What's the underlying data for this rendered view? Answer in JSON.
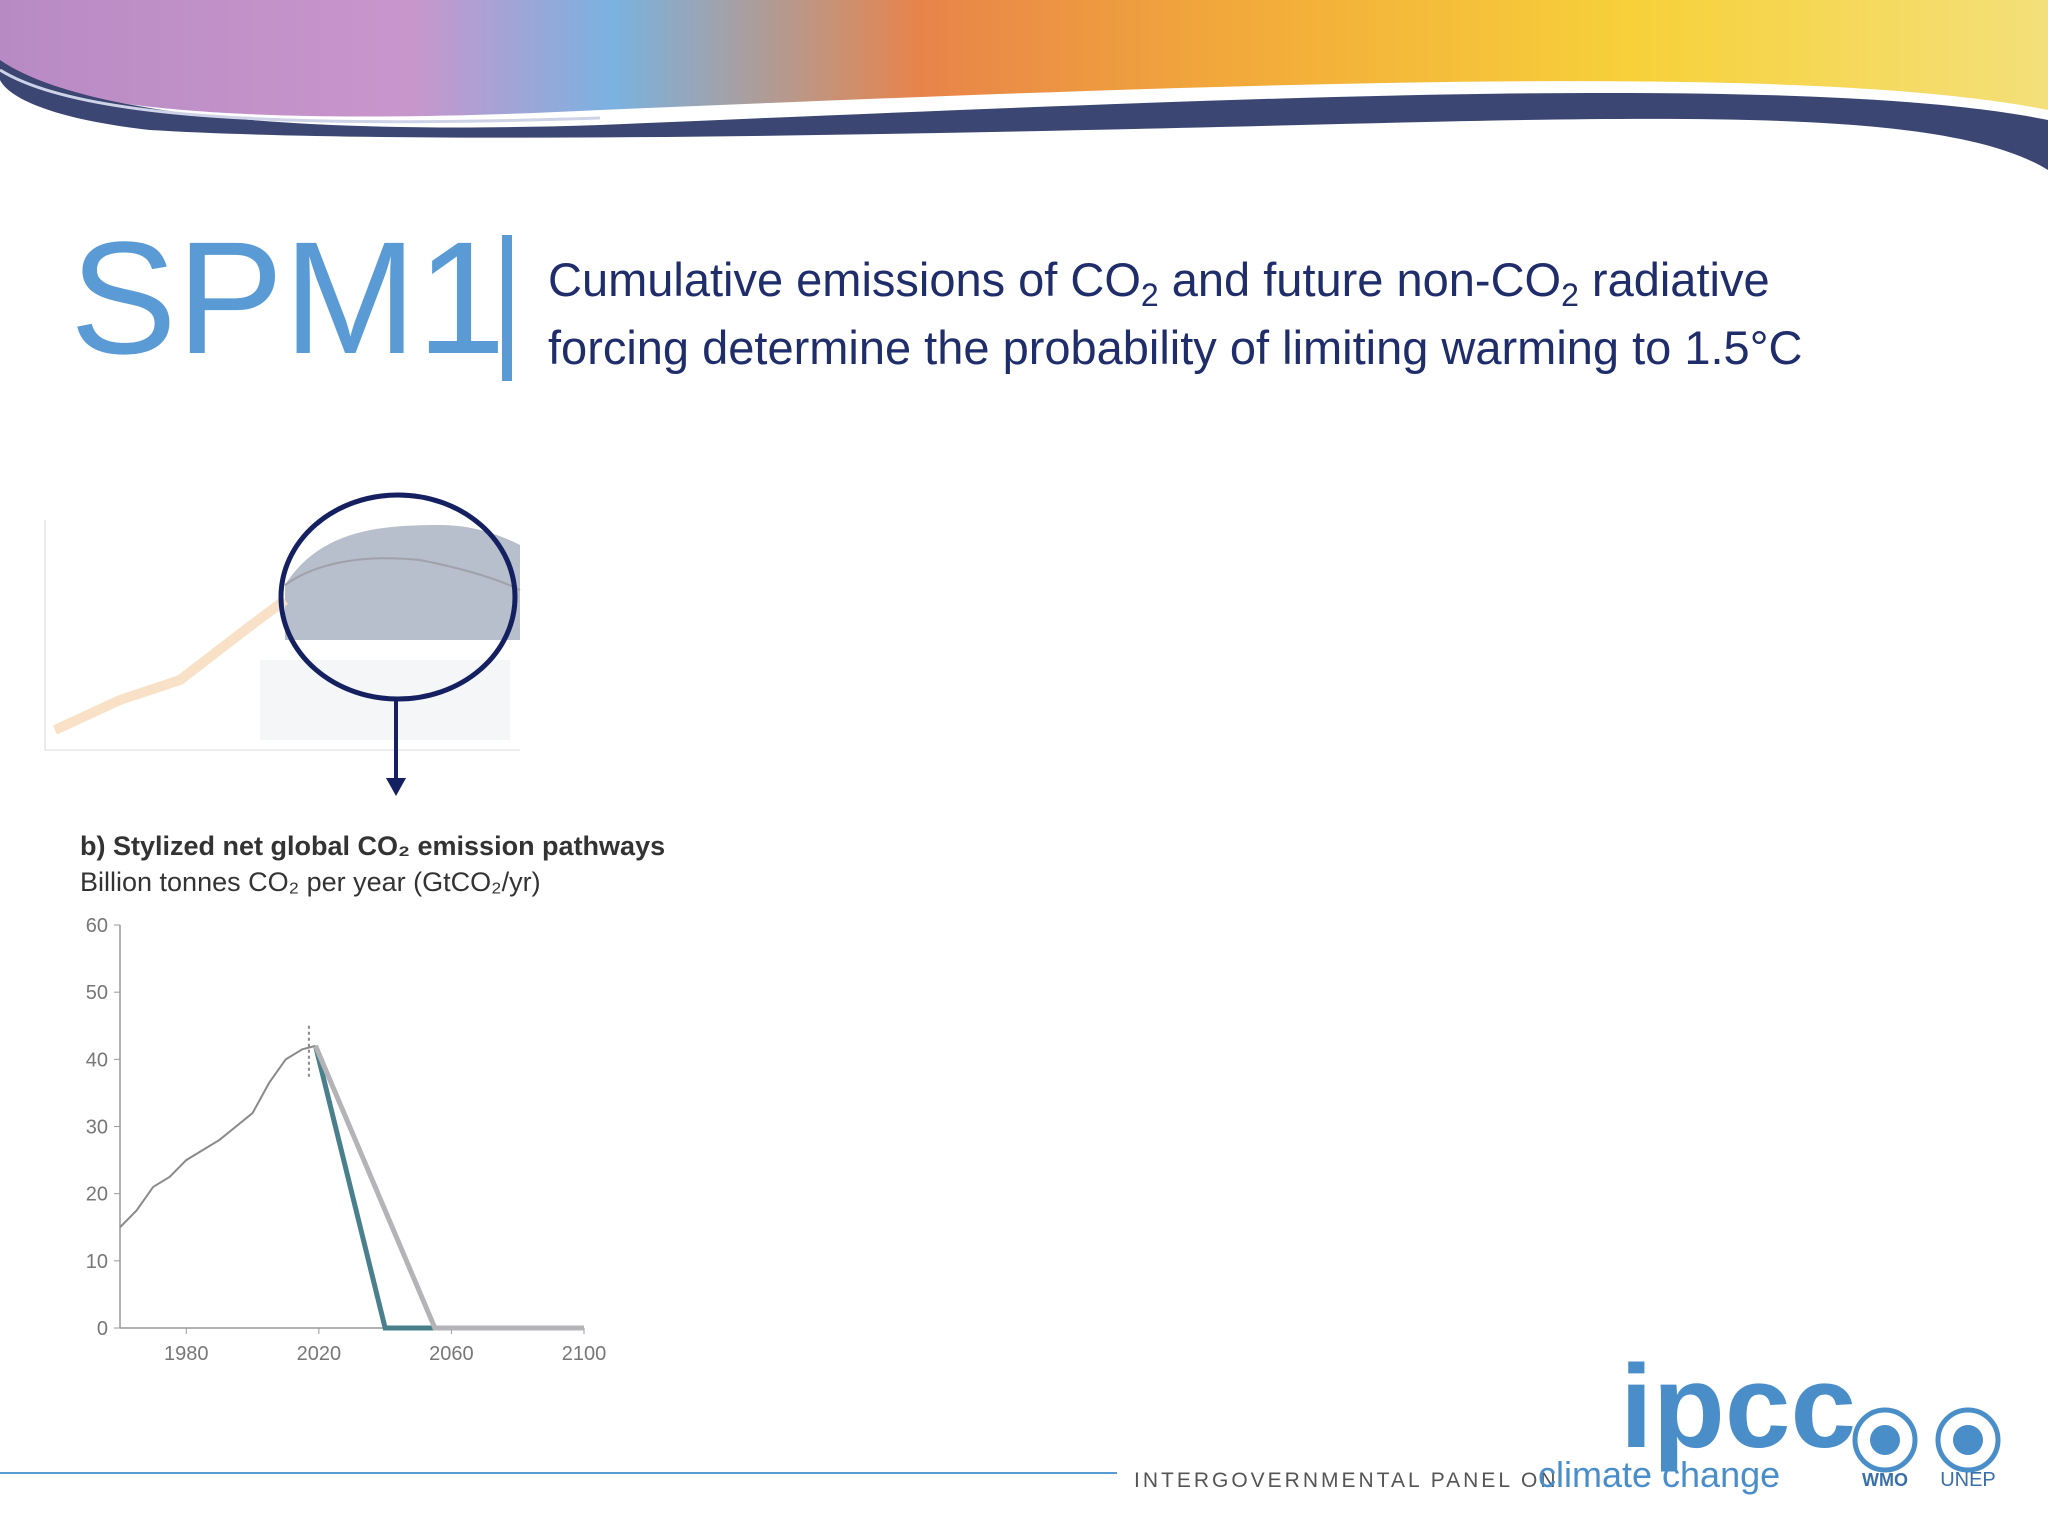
{
  "header": {
    "code": "SPM1",
    "title_lines": [
      [
        "Cumulative emissions of CO",
        "2",
        " and future non-CO",
        "2",
        " radiative"
      ],
      [
        "forcing determine the probability of limiting warming to 1.5°C"
      ]
    ]
  },
  "chart_data": {
    "type": "line",
    "title": "b) Stylized net global CO₂ emission pathways",
    "subtitle": "Billion tonnes CO₂ per year (GtCO₂/yr)",
    "xlim": [
      1960,
      2100
    ],
    "xticks": [
      1980,
      2020,
      2060,
      2100
    ],
    "ylim": [
      0,
      60
    ],
    "yticks": [
      0,
      10,
      20,
      30,
      40,
      50,
      60
    ],
    "series": [
      {
        "color": "#8a8a8a",
        "x": [
          1960,
          1965,
          1970,
          1975,
          1980,
          1985,
          1990,
          1995,
          2000,
          2005,
          2010,
          2015,
          2019
        ],
        "values": [
          15,
          17.5,
          21,
          22.5,
          25,
          26.5,
          28,
          30,
          32,
          36.5,
          40,
          41.5,
          42
        ]
      },
      {
        "color": "#4a7f8c",
        "x": [
          2019,
          2040,
          2100
        ],
        "values": [
          42,
          0,
          0
        ]
      },
      {
        "color": "#b4b4b8",
        "x": [
          2019,
          2055,
          2100
        ],
        "values": [
          42,
          0,
          0
        ]
      }
    ],
    "error_bar": {
      "x": 2017,
      "value": 41,
      "error": 4,
      "color": "#8a8a8a"
    }
  },
  "footer": {
    "logo": "ipcc",
    "org_prefix": "INTERGOVERNMENTAL PANEL ON",
    "org_name": "climate change",
    "partners": [
      "WMO",
      "UNEP"
    ]
  }
}
